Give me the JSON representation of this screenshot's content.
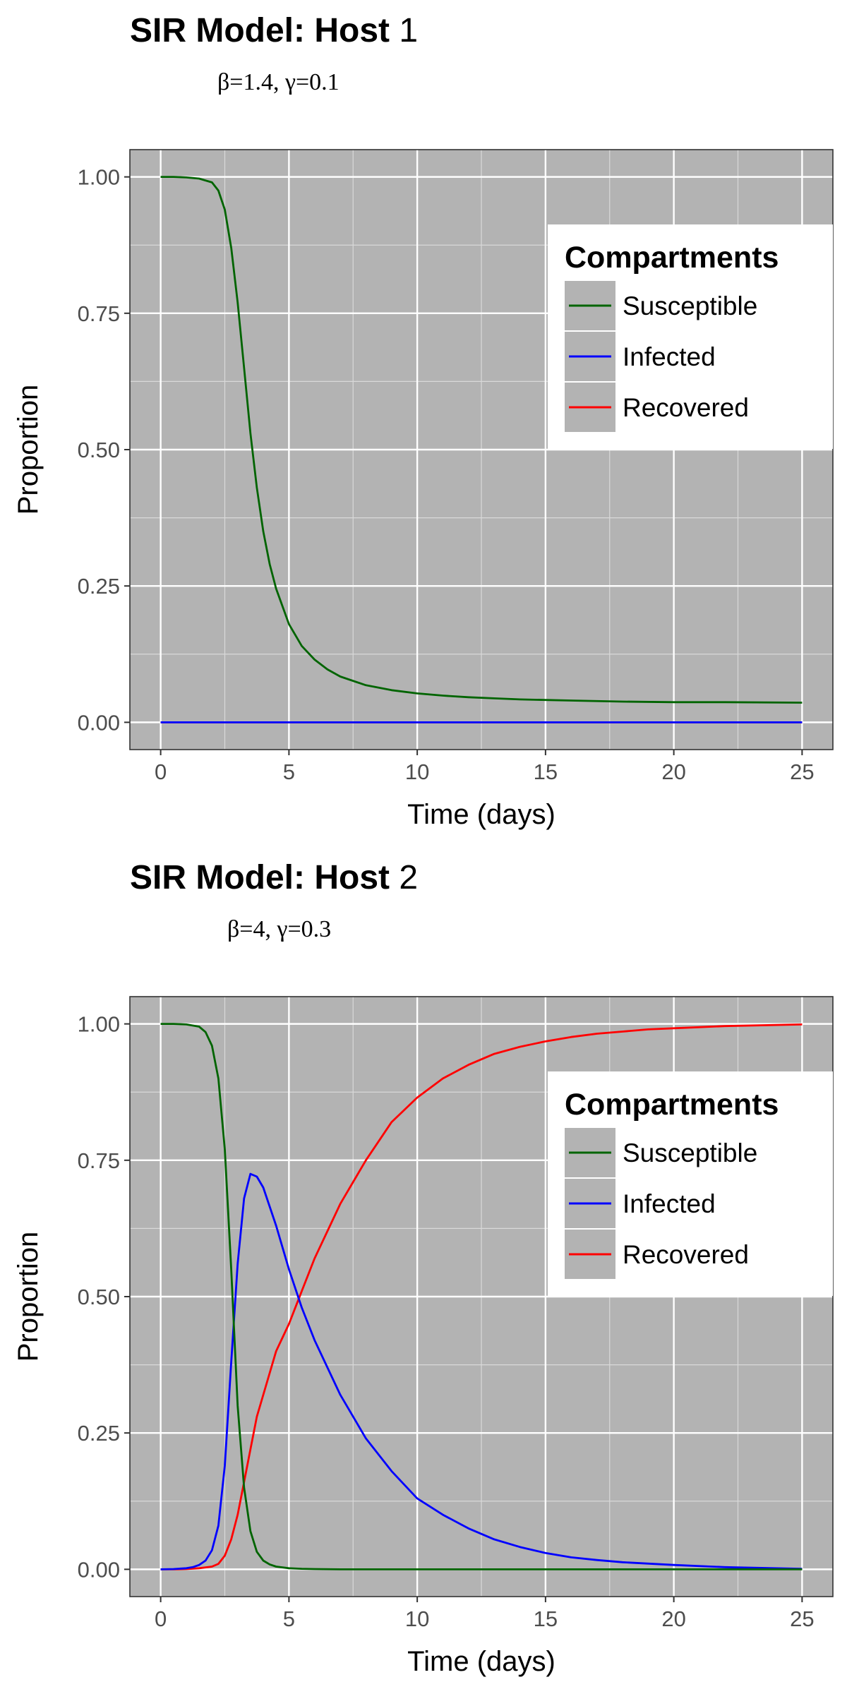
{
  "chart_data": [
    {
      "type": "line",
      "title": "SIR Model: Host",
      "title_number": "1",
      "subtitle": "β=1.4,  γ=0.1",
      "xlabel": "Time (days)",
      "ylabel": "Proportion",
      "xlim": [
        -1.2,
        26.2
      ],
      "ylim": [
        -0.05,
        1.05
      ],
      "xticks": [
        0,
        5,
        10,
        15,
        20,
        25
      ],
      "xtick_labels": [
        "0",
        "5",
        "10",
        "15",
        "20",
        "25"
      ],
      "yticks": [
        0,
        0.25,
        0.5,
        0.75,
        1
      ],
      "ytick_labels": [
        "0.00",
        "0.25",
        "0.50",
        "0.75",
        "1.00"
      ],
      "grid": true,
      "background": "#b3b3b3",
      "legend": {
        "title": "Compartments",
        "position": "right",
        "entries": [
          {
            "label": "Susceptible",
            "color": "#006400"
          },
          {
            "label": "Infected",
            "color": "#0000ff"
          },
          {
            "label": "Recovered",
            "color": "#ff0000"
          }
        ]
      },
      "series": [
        {
          "name": "Susceptible",
          "color": "#006400",
          "x": [
            0,
            0.5,
            1,
            1.5,
            2,
            2.25,
            2.5,
            2.75,
            3,
            3.25,
            3.5,
            3.75,
            4,
            4.25,
            4.5,
            5,
            5.5,
            6,
            6.5,
            7,
            8,
            9,
            10,
            11,
            12,
            13,
            14,
            15,
            16,
            18,
            20,
            22,
            25
          ],
          "values": [
            1.0,
            1.0,
            0.999,
            0.997,
            0.99,
            0.975,
            0.94,
            0.87,
            0.77,
            0.65,
            0.53,
            0.43,
            0.35,
            0.29,
            0.245,
            0.18,
            0.14,
            0.115,
            0.097,
            0.084,
            0.068,
            0.059,
            0.053,
            0.049,
            0.046,
            0.044,
            0.042,
            0.041,
            0.04,
            0.038,
            0.037,
            0.037,
            0.036
          ]
        },
        {
          "name": "Infected",
          "color": "#0000ff",
          "x": [
            0,
            25
          ],
          "values": [
            0,
            0
          ]
        },
        {
          "name": "Recovered",
          "color": "#ff0000",
          "x": [
            0,
            25
          ],
          "values": [
            0,
            0
          ]
        }
      ]
    },
    {
      "type": "line",
      "title": "SIR Model: Host",
      "title_number": "2",
      "subtitle": "β=4,  γ=0.3",
      "xlabel": "Time (days)",
      "ylabel": "Proportion",
      "xlim": [
        -1.2,
        26.2
      ],
      "ylim": [
        -0.05,
        1.05
      ],
      "xticks": [
        0,
        5,
        10,
        15,
        20,
        25
      ],
      "xtick_labels": [
        "0",
        "5",
        "10",
        "15",
        "20",
        "25"
      ],
      "yticks": [
        0,
        0.25,
        0.5,
        0.75,
        1
      ],
      "ytick_labels": [
        "0.00",
        "0.25",
        "0.50",
        "0.75",
        "1.00"
      ],
      "grid": true,
      "background": "#b3b3b3",
      "legend": {
        "title": "Compartments",
        "position": "right",
        "entries": [
          {
            "label": "Susceptible",
            "color": "#006400"
          },
          {
            "label": "Infected",
            "color": "#0000ff"
          },
          {
            "label": "Recovered",
            "color": "#ff0000"
          }
        ]
      },
      "series": [
        {
          "name": "Susceptible",
          "color": "#006400",
          "x": [
            0,
            0.5,
            1,
            1.5,
            1.75,
            2,
            2.25,
            2.5,
            2.75,
            3,
            3.25,
            3.5,
            3.75,
            4,
            4.25,
            4.5,
            5,
            5.5,
            6,
            7,
            8,
            10,
            15,
            20,
            25
          ],
          "values": [
            1.0,
            1.0,
            0.999,
            0.995,
            0.985,
            0.96,
            0.9,
            0.77,
            0.55,
            0.3,
            0.15,
            0.07,
            0.032,
            0.016,
            0.009,
            0.005,
            0.002,
            0.001,
            0.0005,
            0,
            0,
            0,
            0,
            0,
            0
          ]
        },
        {
          "name": "Infected",
          "color": "#0000ff",
          "x": [
            0,
            0.5,
            1,
            1.25,
            1.5,
            1.75,
            2,
            2.25,
            2.5,
            2.75,
            3,
            3.25,
            3.5,
            3.75,
            4,
            4.25,
            4.5,
            5,
            5.5,
            6,
            7,
            8,
            9,
            10,
            11,
            12,
            13,
            14,
            15,
            16,
            17,
            18,
            20,
            22,
            25
          ],
          "values": [
            0,
            0.0005,
            0.002,
            0.004,
            0.008,
            0.016,
            0.035,
            0.08,
            0.19,
            0.38,
            0.56,
            0.68,
            0.725,
            0.72,
            0.7,
            0.665,
            0.63,
            0.55,
            0.48,
            0.42,
            0.32,
            0.24,
            0.18,
            0.13,
            0.1,
            0.075,
            0.055,
            0.041,
            0.03,
            0.022,
            0.017,
            0.013,
            0.008,
            0.004,
            0.001
          ]
        },
        {
          "name": "Recovered",
          "color": "#ff0000",
          "x": [
            0,
            0.5,
            1,
            1.5,
            2,
            2.25,
            2.5,
            2.75,
            3,
            3.25,
            3.5,
            3.75,
            4,
            4.5,
            5,
            5.5,
            6,
            7,
            8,
            9,
            10,
            11,
            12,
            13,
            14,
            15,
            16,
            17,
            18,
            19,
            20,
            22,
            25
          ],
          "values": [
            0,
            0,
            0.0005,
            0.002,
            0.005,
            0.01,
            0.025,
            0.055,
            0.1,
            0.16,
            0.22,
            0.28,
            0.32,
            0.4,
            0.45,
            0.51,
            0.57,
            0.67,
            0.75,
            0.82,
            0.865,
            0.9,
            0.925,
            0.945,
            0.958,
            0.968,
            0.976,
            0.982,
            0.986,
            0.99,
            0.992,
            0.996,
            0.999
          ]
        }
      ]
    }
  ]
}
